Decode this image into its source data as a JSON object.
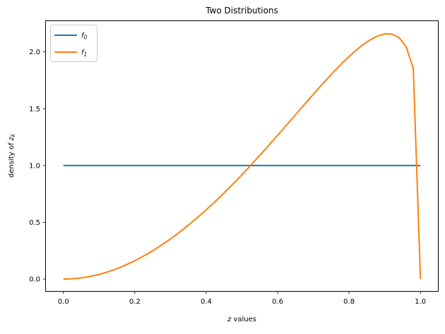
{
  "chart_data": {
    "type": "line",
    "title": "Two Distributions",
    "xlabel": {
      "var": "z",
      "rest": " values"
    },
    "ylabel": {
      "prefix": "density of ",
      "var": "z",
      "sub": "k"
    },
    "xlim": [
      -0.05,
      1.05
    ],
    "ylim": [
      -0.108,
      2.274
    ],
    "x_tick_values": [
      0.0,
      0.2,
      0.4,
      0.6,
      0.8,
      1.0
    ],
    "x_tick_labels": [
      "0.0",
      "0.2",
      "0.4",
      "0.6",
      "0.8",
      "1.0"
    ],
    "y_tick_values": [
      0.0,
      0.5,
      1.0,
      1.5,
      2.0
    ],
    "y_tick_labels": [
      "0.0",
      "0.5",
      "1.0",
      "1.5",
      "2.0"
    ],
    "grid": false,
    "legend": {
      "position": "upper left",
      "entries": [
        {
          "base": "f",
          "sub": "0"
        },
        {
          "base": "f",
          "sub": "1"
        }
      ]
    },
    "series": [
      {
        "name": "f0",
        "color": "#1f77b4",
        "x": [
          0.0,
          1.0
        ],
        "y": [
          1.0,
          1.0
        ]
      },
      {
        "name": "f1",
        "color": "#ff7f0e",
        "x": [
          0.0,
          0.02,
          0.04,
          0.06,
          0.08,
          0.1,
          0.12,
          0.14,
          0.16,
          0.18,
          0.2,
          0.22,
          0.24,
          0.26,
          0.28,
          0.3,
          0.32,
          0.34,
          0.36,
          0.38,
          0.4,
          0.42,
          0.44,
          0.46,
          0.48,
          0.5,
          0.52,
          0.54,
          0.56,
          0.58,
          0.6,
          0.62,
          0.64,
          0.66,
          0.68,
          0.7,
          0.72,
          0.74,
          0.76,
          0.78,
          0.8,
          0.82,
          0.84,
          0.86,
          0.88,
          0.9,
          0.92,
          0.94,
          0.96,
          0.98,
          1.0
        ],
        "y": [
          0.0,
          0.002,
          0.007,
          0.015,
          0.027,
          0.041,
          0.059,
          0.08,
          0.104,
          0.132,
          0.162,
          0.195,
          0.23,
          0.269,
          0.31,
          0.354,
          0.4,
          0.449,
          0.501,
          0.554,
          0.61,
          0.668,
          0.728,
          0.79,
          0.854,
          0.919,
          0.986,
          1.055,
          1.124,
          1.195,
          1.266,
          1.338,
          1.41,
          1.483,
          1.555,
          1.627,
          1.698,
          1.767,
          1.834,
          1.899,
          1.959,
          2.016,
          2.066,
          2.108,
          2.14,
          2.159,
          2.157,
          2.126,
          2.045,
          1.855,
          0.0
        ]
      }
    ]
  },
  "colors": {
    "background": "#ffffff",
    "spine": "#000000",
    "tick": "#000000",
    "text": "#000000",
    "legend_border": "#cccccc",
    "legend_background": "#ffffff",
    "series_f0": "#1f77b4",
    "series_f1": "#ff7f0e"
  }
}
